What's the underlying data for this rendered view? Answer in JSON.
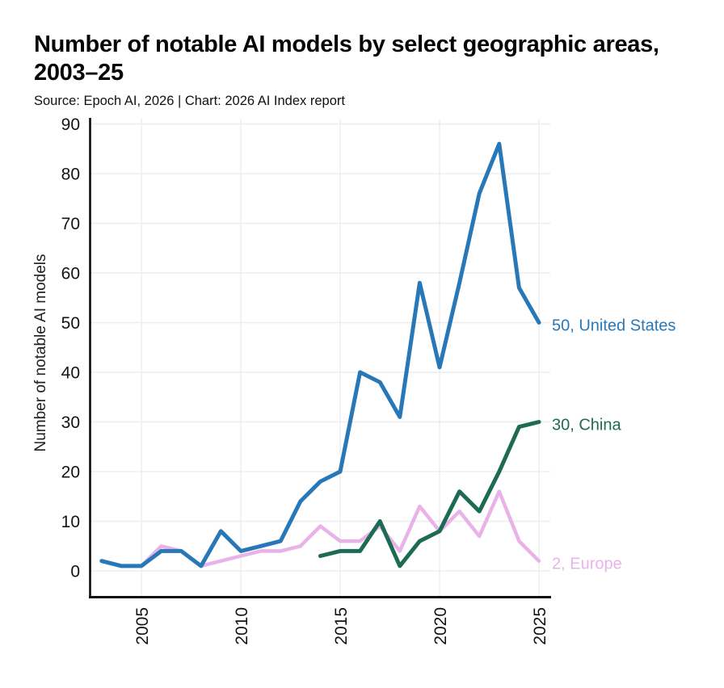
{
  "chart_data": {
    "type": "line",
    "title": "Number of notable AI models by select geographic areas, 2003–25",
    "source": "Source: Epoch AI, 2026 | Chart: 2026 AI Index report",
    "ylabel": "Number of notable AI models",
    "xlabel": "",
    "ylim": [
      0,
      90
    ],
    "xlim": [
      2003,
      2025
    ],
    "yticks": [
      0,
      10,
      20,
      30,
      40,
      50,
      60,
      70,
      80,
      90
    ],
    "xticks": [
      2005,
      2010,
      2015,
      2020,
      2025
    ],
    "grid": true,
    "legend_position": "end-of-line labels at right of chart",
    "x_tick_rotation": -90,
    "series": [
      {
        "name": "United States",
        "color": "#2878b8",
        "start_year": 2003,
        "years": [
          2003,
          2004,
          2005,
          2006,
          2007,
          2008,
          2009,
          2010,
          2011,
          2012,
          2013,
          2014,
          2015,
          2016,
          2017,
          2018,
          2019,
          2020,
          2021,
          2022,
          2023,
          2024,
          2025
        ],
        "values": [
          2,
          1,
          1,
          4,
          4,
          1,
          8,
          4,
          5,
          6,
          14,
          18,
          20,
          40,
          38,
          31,
          58,
          41,
          58,
          76,
          86,
          57,
          50
        ],
        "end_label": "50, United States"
      },
      {
        "name": "China",
        "color": "#1d6a55",
        "start_year": 2014,
        "years": [
          2014,
          2015,
          2016,
          2017,
          2018,
          2019,
          2020,
          2021,
          2022,
          2023,
          2024,
          2025
        ],
        "values": [
          3,
          4,
          4,
          10,
          1,
          6,
          8,
          16,
          12,
          20,
          29,
          30
        ],
        "end_label": "30, China"
      },
      {
        "name": "Europe",
        "color": "#e9b3e9",
        "start_year": 2005,
        "years": [
          2005,
          2006,
          2007,
          2008,
          2009,
          2010,
          2011,
          2012,
          2013,
          2014,
          2015,
          2016,
          2017,
          2018,
          2019,
          2020,
          2021,
          2022,
          2023,
          2024,
          2025
        ],
        "values": [
          1,
          5,
          4,
          1,
          2,
          3,
          4,
          4,
          5,
          9,
          6,
          6,
          9,
          4,
          13,
          8,
          12,
          7,
          16,
          6,
          2
        ],
        "end_label": "2, Europe"
      }
    ],
    "colors": {
      "united_states": "#2878b8",
      "china": "#1d6a55",
      "europe": "#e9b3e9",
      "axis": "#0a0a0a",
      "grid": "#ededed",
      "tick_text": "#141414",
      "title_text": "#050505"
    }
  }
}
